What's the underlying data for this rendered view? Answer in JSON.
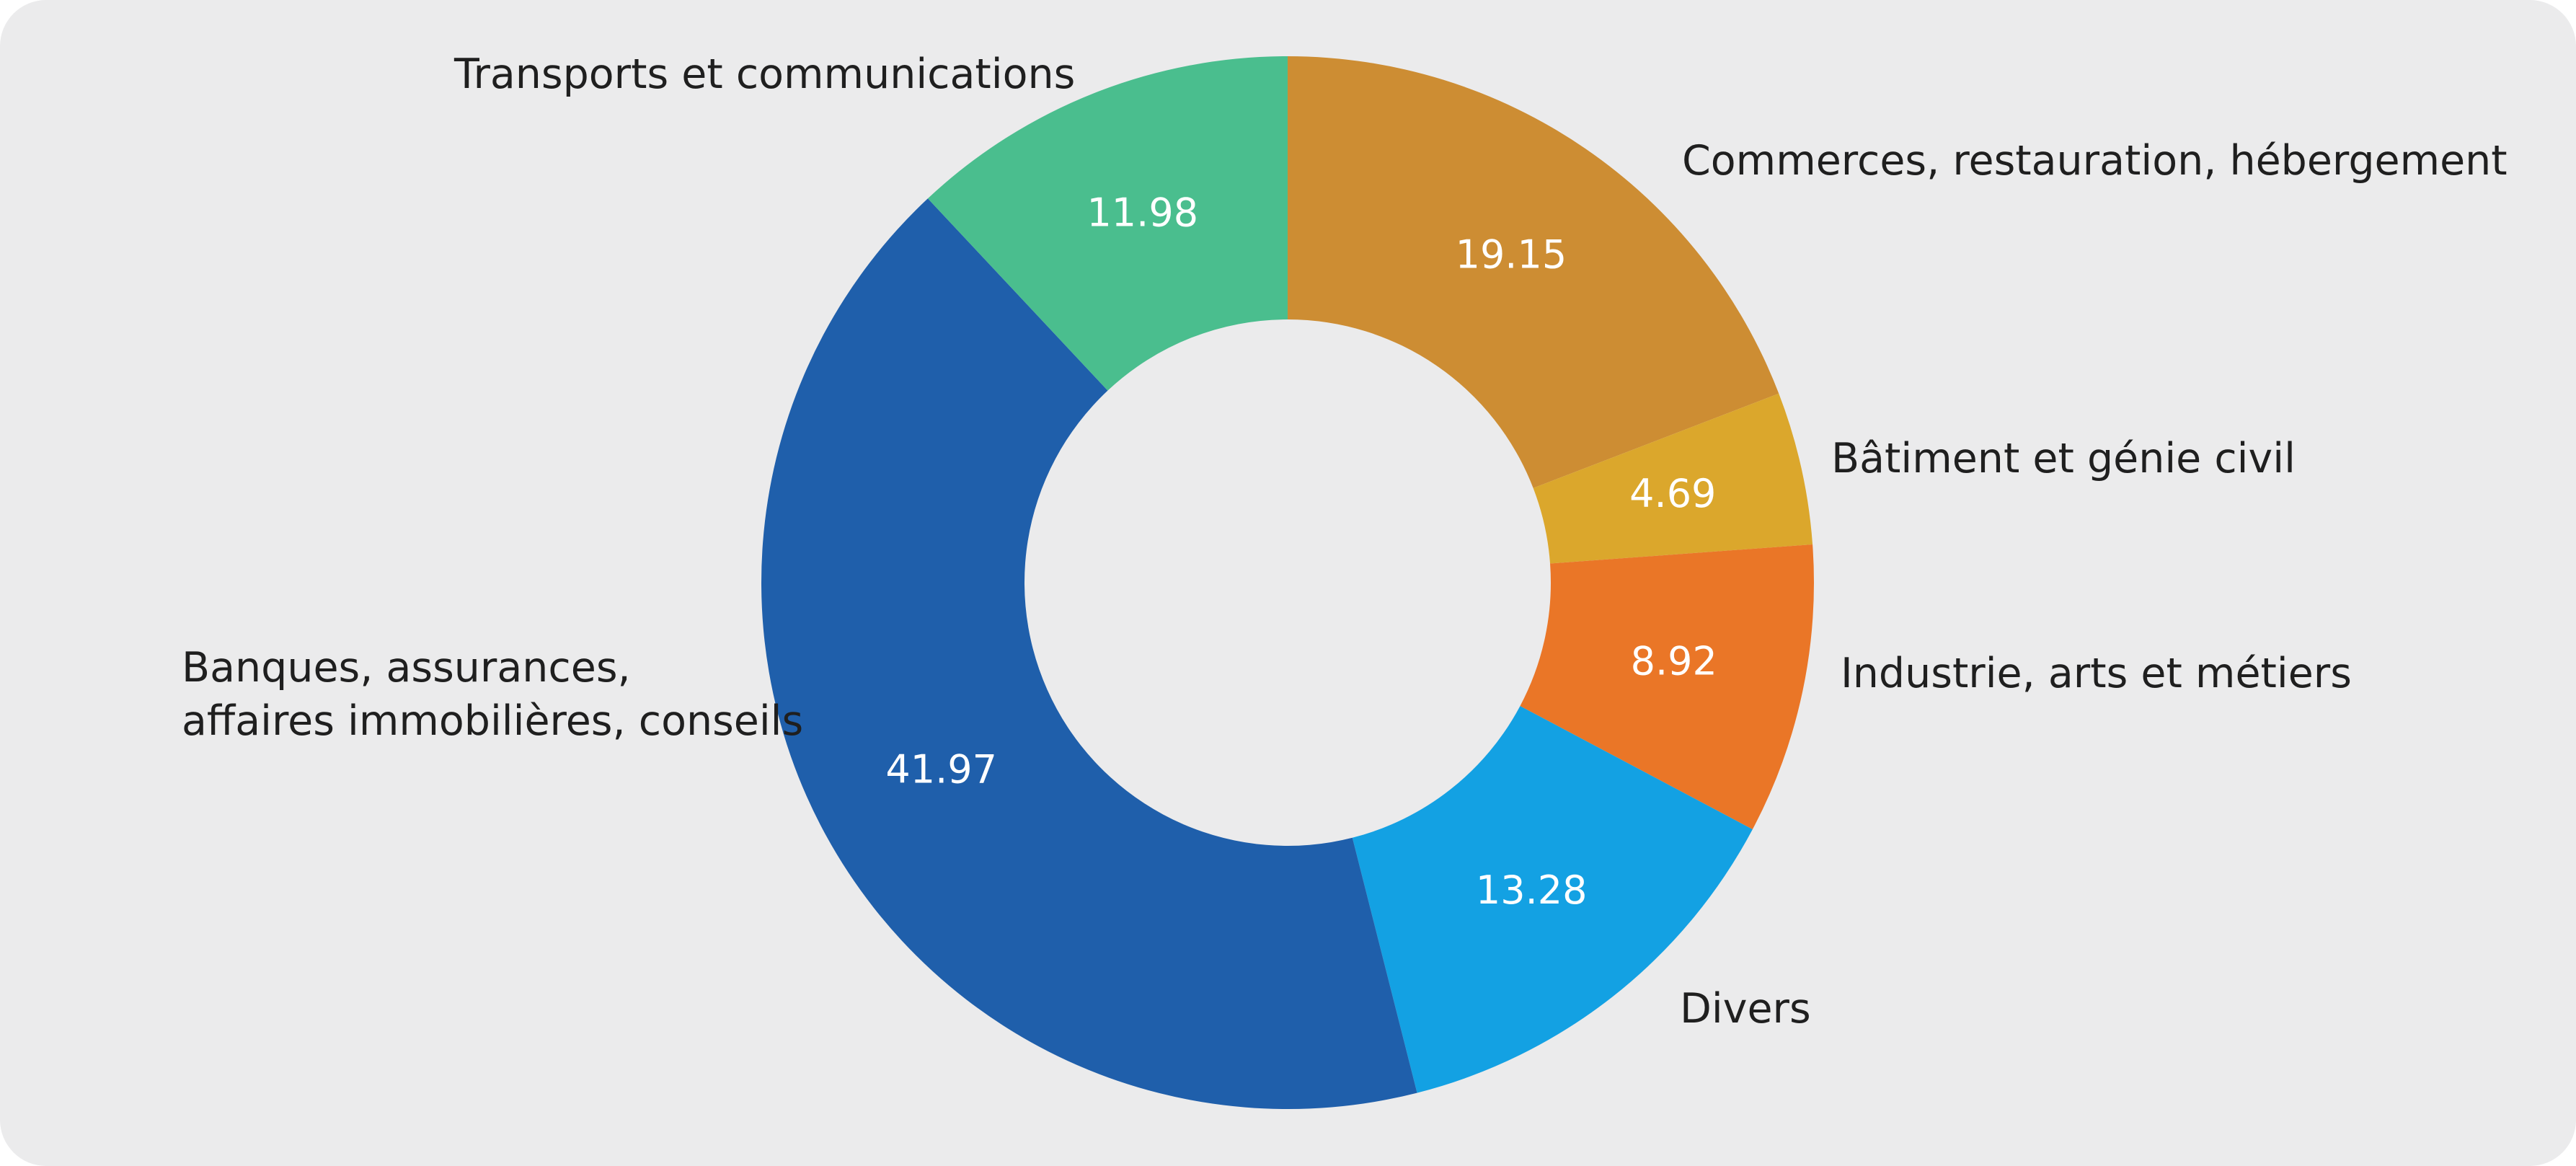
{
  "chart_data": {
    "type": "pie",
    "variant": "donut",
    "title": "",
    "start_angle_deg": 0,
    "direction": "clockwise",
    "slices": [
      {
        "id": "commerces",
        "label_lines": [
          "Commerces, restauration, hébergement"
        ],
        "value": 19.15,
        "value_label": "19.15",
        "color": "#cd8d33"
      },
      {
        "id": "batiment",
        "label_lines": [
          "Bâtiment et génie civil"
        ],
        "value": 4.69,
        "value_label": "4.69",
        "color": "#dba72c"
      },
      {
        "id": "industrie",
        "label_lines": [
          "Industrie, arts et métiers"
        ],
        "value": 8.92,
        "value_label": "8.92",
        "color": "#ea7627"
      },
      {
        "id": "divers",
        "label_lines": [
          "Divers"
        ],
        "value": 13.28,
        "value_label": "13.28",
        "color": "#13a1e3"
      },
      {
        "id": "banques",
        "label_lines": [
          "Banques, assurances,",
          "affaires immobilières, conseils"
        ],
        "value": 41.97,
        "value_label": "41.97",
        "color": "#1f5fab"
      },
      {
        "id": "transports",
        "label_lines": [
          "Transports et communications"
        ],
        "value": 11.98,
        "value_label": "11.98",
        "color": "#4abe8e"
      }
    ]
  }
}
